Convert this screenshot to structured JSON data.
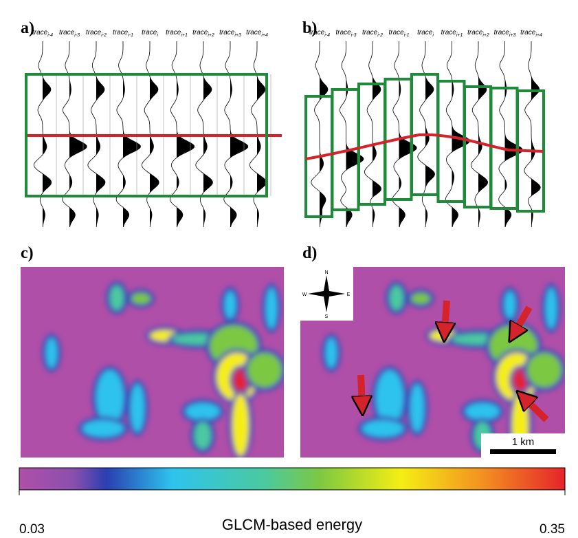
{
  "panels": {
    "a": "a)",
    "b": "b)",
    "c": "c)",
    "d": "d)"
  },
  "traces": [
    {
      "base": "trace",
      "sub": "i-4"
    },
    {
      "base": "trace",
      "sub": "i-3"
    },
    {
      "base": "trace",
      "sub": "i-2"
    },
    {
      "base": "trace",
      "sub": "i-1"
    },
    {
      "base": "trace",
      "sub": "i"
    },
    {
      "base": "trace",
      "sub": "i+1"
    },
    {
      "base": "trace",
      "sub": "i+2"
    },
    {
      "base": "trace",
      "sub": "i+3"
    },
    {
      "base": "trace",
      "sub": "i+4"
    }
  ],
  "compass": {
    "n": "N",
    "s": "S",
    "e": "E",
    "w": "W"
  },
  "scale_bar": "1 km",
  "colorbar": {
    "label": "GLCM-based energy",
    "ticks": [
      0.03,
      0.35
    ]
  }
}
